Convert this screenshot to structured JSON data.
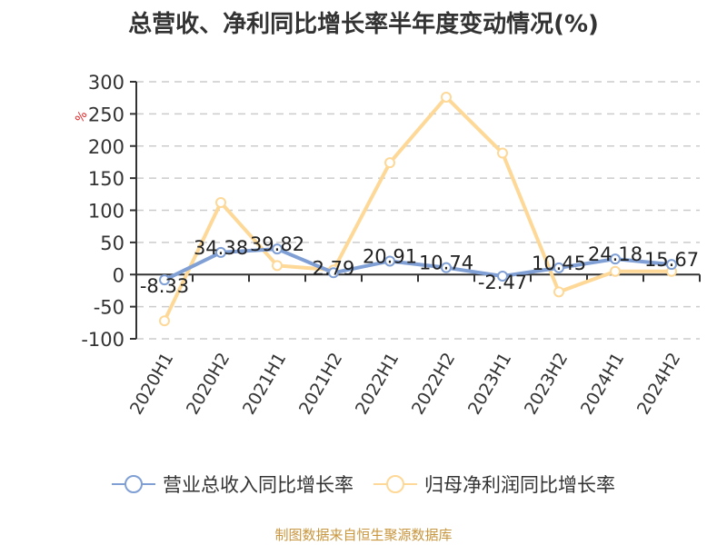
{
  "title": "总营收、净利同比增长率半年度变动情况(%)",
  "source": "制图数据来自恒生聚源数据库",
  "colors": {
    "revenue": "#7f9fd5",
    "net_profit": "#fed897",
    "unit_label": "#e02020",
    "source": "#c8963e"
  },
  "legend": [
    {
      "label": "营业总收入同比增长率",
      "color": "#7f9fd5"
    },
    {
      "label": "归母净利润同比增长率",
      "color": "#fed897"
    }
  ],
  "chart_data": {
    "type": "line",
    "title": "总营收、净利同比增长率半年度变动情况(%)",
    "xlabel": "",
    "ylabel": "%",
    "ylim": [
      -100,
      300
    ],
    "yticks": [
      300,
      250,
      200,
      150,
      100,
      50,
      0,
      -50,
      -100
    ],
    "grid": true,
    "legend_position": "bottom",
    "categories": [
      "2020H1",
      "2020H2",
      "2021H1",
      "2021H2",
      "2022H1",
      "2022H2",
      "2023H1",
      "2023H2",
      "2024H1",
      "2024H2"
    ],
    "series": [
      {
        "name": "营业总收入同比增长率",
        "values": [
          -8.33,
          34.38,
          39.82,
          2.79,
          20.91,
          10.74,
          -2.47,
          10.45,
          24.18,
          15.67
        ],
        "labels": [
          "-8.33",
          "34.38",
          "39.82",
          "2.79",
          "20.91",
          "10.74",
          "-2.47",
          "10.45",
          "24.18",
          "15.67"
        ]
      },
      {
        "name": "归母净利润同比增长率",
        "values": [
          -72,
          112,
          14,
          7,
          174,
          276,
          189,
          -27,
          5,
          5
        ]
      }
    ]
  }
}
